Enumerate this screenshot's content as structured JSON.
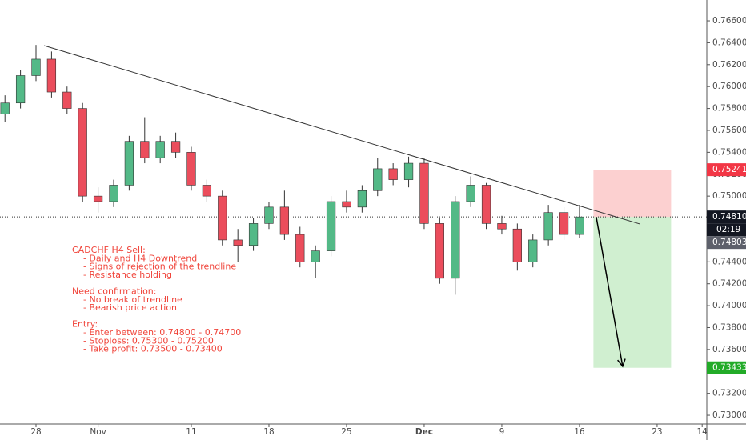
{
  "chart_data": {
    "type": "candlestick",
    "x": [
      -2,
      -1,
      0,
      1,
      2,
      3,
      4,
      5,
      6,
      7,
      8,
      9,
      10,
      11,
      12,
      13,
      14,
      15,
      16,
      17,
      18,
      19,
      20,
      21,
      22,
      23,
      24,
      25,
      26,
      27,
      28,
      29,
      30,
      31,
      32,
      33,
      34,
      35
    ],
    "open": [
      0.7575,
      0.7585,
      0.761,
      0.7625,
      0.7595,
      0.758,
      0.75,
      0.7495,
      0.751,
      0.755,
      0.7535,
      0.755,
      0.754,
      0.751,
      0.75,
      0.746,
      0.7455,
      0.7475,
      0.749,
      0.7465,
      0.744,
      0.745,
      0.7495,
      0.749,
      0.7505,
      0.7525,
      0.7515,
      0.753,
      0.7475,
      0.7425,
      0.7495,
      0.751,
      0.7475,
      0.747,
      0.744,
      0.746,
      0.7485,
      0.7465
    ],
    "high": [
      0.7592,
      0.7615,
      0.7638,
      0.7632,
      0.76,
      0.7585,
      0.7508,
      0.7515,
      0.7555,
      0.7572,
      0.7555,
      0.7558,
      0.7545,
      0.7515,
      0.7505,
      0.747,
      0.748,
      0.7495,
      0.7505,
      0.7472,
      0.7455,
      0.75,
      0.7505,
      0.751,
      0.7535,
      0.753,
      0.7536,
      0.7535,
      0.748,
      0.75,
      0.7518,
      0.7512,
      0.7482,
      0.7475,
      0.7465,
      0.7492,
      0.749,
      0.7492
    ],
    "low": [
      0.7568,
      0.758,
      0.7605,
      0.759,
      0.7575,
      0.7495,
      0.7485,
      0.749,
      0.7505,
      0.753,
      0.753,
      0.7535,
      0.7505,
      0.7495,
      0.7455,
      0.744,
      0.745,
      0.747,
      0.746,
      0.7435,
      0.7425,
      0.7445,
      0.7485,
      0.7485,
      0.75,
      0.751,
      0.7508,
      0.747,
      0.742,
      0.741,
      0.749,
      0.747,
      0.7465,
      0.7432,
      0.7435,
      0.7455,
      0.746,
      0.7462
    ],
    "close": [
      0.7585,
      0.761,
      0.7625,
      0.7595,
      0.758,
      0.75,
      0.7495,
      0.751,
      0.755,
      0.7535,
      0.755,
      0.754,
      0.751,
      0.75,
      0.746,
      0.7455,
      0.7475,
      0.749,
      0.7465,
      0.744,
      0.745,
      0.7495,
      0.749,
      0.7505,
      0.7525,
      0.7515,
      0.753,
      0.7475,
      0.7425,
      0.7495,
      0.751,
      0.7475,
      0.747,
      0.744,
      0.746,
      0.7485,
      0.7465,
      0.7481
    ],
    "up_color": "#53b987",
    "down_color": "#eb4d5c",
    "xlim": [
      -2.32,
      43.2
    ],
    "xticks": [
      {
        "value": 0,
        "label": "28"
      },
      {
        "value": 4,
        "label": "Nov"
      },
      {
        "value": 10,
        "label": "11"
      },
      {
        "value": 15,
        "label": "18"
      },
      {
        "value": 20,
        "label": "25"
      },
      {
        "value": 25,
        "label": "Dec"
      },
      {
        "value": 30,
        "label": "9"
      },
      {
        "value": 35,
        "label": "16"
      },
      {
        "value": 40,
        "label": "23"
      },
      {
        "value": 42.9,
        "label": "14"
      }
    ],
    "ylim": [
      0.7292,
      0.7679
    ],
    "yticks": [
      {
        "value": 0.73,
        "label": "0.73000"
      },
      {
        "value": 0.732,
        "label": "0.73200"
      },
      {
        "value": 0.734,
        "label": "0.73400"
      },
      {
        "value": 0.736,
        "label": "0.73600"
      },
      {
        "value": 0.738,
        "label": "0.73800"
      },
      {
        "value": 0.74,
        "label": "0.74000"
      },
      {
        "value": 0.742,
        "label": "0.74200"
      },
      {
        "value": 0.744,
        "label": "0.74400"
      },
      {
        "value": 0.746,
        "label": "0.74600"
      },
      {
        "value": 0.748,
        "label": "0.74800"
      },
      {
        "value": 0.75,
        "label": "0.75000"
      },
      {
        "value": 0.752,
        "label": "0.75200"
      },
      {
        "value": 0.754,
        "label": "0.75400"
      },
      {
        "value": 0.756,
        "label": "0.75600"
      },
      {
        "value": 0.758,
        "label": "0.75800"
      },
      {
        "value": 0.76,
        "label": "0.76000"
      },
      {
        "value": 0.762,
        "label": "0.76200"
      },
      {
        "value": 0.764,
        "label": "0.76400"
      },
      {
        "value": 0.766,
        "label": "0.76600"
      }
    ],
    "trendline": {
      "x": [
        0.52,
        38.9
      ],
      "y": [
        0.76374,
        0.74745
      ]
    },
    "arrow": {
      "x": [
        36.08,
        37.78
      ],
      "y": [
        0.7481,
        0.73446
      ]
    },
    "position": {
      "x": [
        35.9,
        40.9
      ],
      "stop": {
        "value": 0.75241,
        "label": "0.75241"
      },
      "entry": {
        "value": 0.7481,
        "label": "0.74810"
      },
      "target": {
        "value": 0.73433,
        "label": "0.73433"
      }
    },
    "countdown": "02:19",
    "bid": {
      "value": 0.74803,
      "label": "0.74803"
    },
    "notes": [
      [
        "CADCHF H4 Sell:",
        "- Daily and H4 Downtrend",
        "- Signs of rejection of the trendline",
        "- Resistance holding"
      ],
      [
        "Need confirmation:",
        "- No break of trendline",
        "- Bearish price action"
      ],
      [
        "Entry:",
        "- Enter between: 0.74800 - 0.74700",
        "- Stoploss: 0.75300 - 0.75200",
        "- Take profit: 0.73500 - 0.73400"
      ]
    ]
  }
}
